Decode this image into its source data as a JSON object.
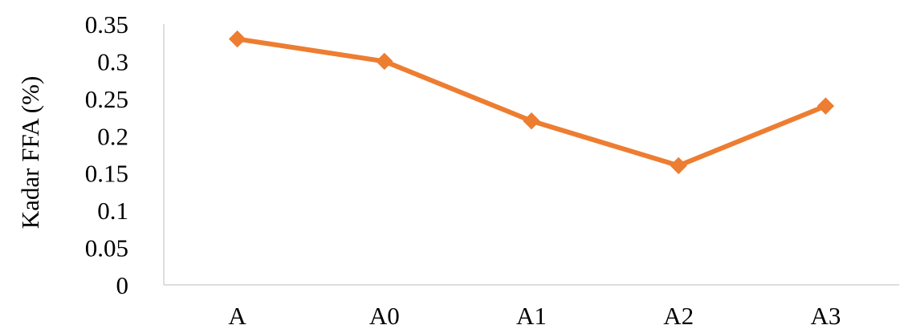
{
  "chart_data": {
    "type": "line",
    "title": "",
    "xlabel": "",
    "ylabel": "Kadar FFA (%)",
    "categories": [
      "A",
      "A0",
      "A1",
      "A2",
      "A3"
    ],
    "series": [
      {
        "values": [
          0.33,
          0.3,
          0.22,
          0.16,
          0.24
        ]
      }
    ],
    "ylim": [
      0,
      0.35
    ],
    "yticks": [
      "0",
      "0.05",
      "0.1",
      "0.15",
      "0.2",
      "0.25",
      "0.3",
      "0.35"
    ],
    "grid": false,
    "legend": "none",
    "series_color": "#ED7D31",
    "marker": "diamond"
  }
}
